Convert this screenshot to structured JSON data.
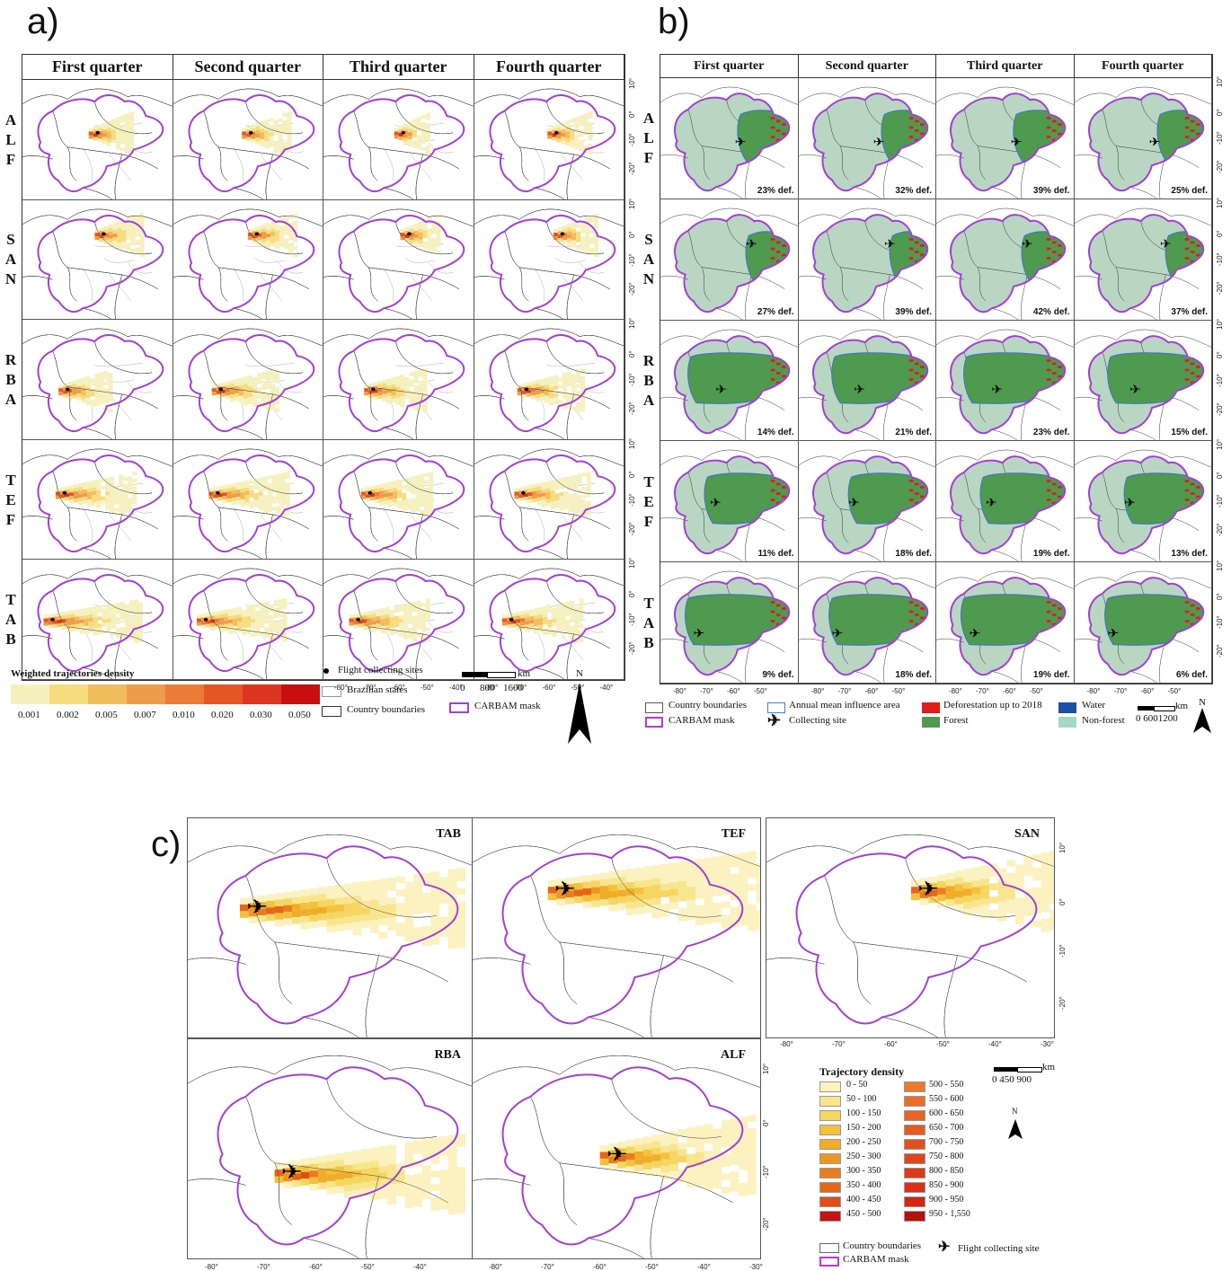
{
  "panels": {
    "a": "a)",
    "b": "b)",
    "c": "c)"
  },
  "quarters": [
    "First quarter",
    "Second quarter",
    "Third quarter",
    "Fourth quarter"
  ],
  "sites": [
    {
      "code": "ALF",
      "letters": [
        "A",
        "L",
        "F"
      ]
    },
    {
      "code": "SAN",
      "letters": [
        "S",
        "A",
        "N"
      ]
    },
    {
      "code": "RBA",
      "letters": [
        "R",
        "B",
        "A"
      ]
    },
    {
      "code": "TEF",
      "letters": [
        "T",
        "E",
        "F"
      ]
    },
    {
      "code": "TAB",
      "letters": [
        "T",
        "A",
        "B"
      ]
    }
  ],
  "deforestation": [
    [
      "23% def.",
      "32% def.",
      "39% def.",
      "25% def."
    ],
    [
      "27% def.",
      "39% def.",
      "42% def.",
      "37% def."
    ],
    [
      "14% def.",
      "21% def.",
      "23% def.",
      "15% def."
    ],
    [
      "11% def.",
      "18% def.",
      "19% def.",
      "13% def."
    ],
    [
      "9% def.",
      "18% def.",
      "19% def.",
      "6% def."
    ]
  ],
  "ticks_x": [
    "-80°",
    "-70°",
    "-60°",
    "-50°",
    "-40°"
  ],
  "ticks_x_c": [
    "-80°",
    "-70°",
    "-60°",
    "-50°",
    "-40°",
    "-30°"
  ],
  "ticks_y": [
    "10°",
    "0°",
    "-10°",
    "-20°"
  ],
  "legend_a": {
    "title": "Weighted trajectories density",
    "values": [
      "0.001",
      "0.002",
      "0.005",
      "0.007",
      "0.010",
      "0.020",
      "0.030",
      "0.050"
    ],
    "colors": [
      "#f6f0bf",
      "#f6dc7c",
      "#f1bd5c",
      "#ee9c4a",
      "#ea7c36",
      "#e45724",
      "#dc3620",
      "#c70f0f"
    ],
    "sites": "Flight collecting sites",
    "states": "Brazilian states",
    "countries": "Country boundaries",
    "mask": "CARBAM mask",
    "scale_unit": "km",
    "scale_vals": [
      "0",
      "800",
      "1600"
    ],
    "north": "N"
  },
  "legend_b": {
    "countries": "Country boundaries",
    "influence": "Annual mean influence area",
    "deforest": "Deforestation up to 2018",
    "water": "Water",
    "mask": "CARBAM mask",
    "site": "Collecting site",
    "forest": "Forest",
    "nonforest": "Non-forest",
    "scale_unit": "km",
    "scale_vals": "0   6001200",
    "north": "N"
  },
  "c_panels": [
    "TAB",
    "TEF",
    "SAN",
    "RBA",
    "ALF"
  ],
  "legend_c": {
    "title": "Trajectory density",
    "col1": [
      "0 - 50",
      "50 - 100",
      "100 - 150",
      "150 - 200",
      "200 - 250",
      "250 - 300",
      "300 - 350",
      "350 - 400",
      "400 - 450",
      "450 - 500"
    ],
    "col2": [
      "500 - 550",
      "550 - 600",
      "600 - 650",
      "650 - 700",
      "700 - 750",
      "750 - 800",
      "800 - 850",
      "850 - 900",
      "900 - 950",
      "950 - 1,550"
    ],
    "countries": "Country boundaries",
    "site": "Flight collecting site",
    "mask": "CARBAM mask",
    "scale_unit": "km",
    "scale_vals": "0   450  900",
    "north": "N"
  }
}
